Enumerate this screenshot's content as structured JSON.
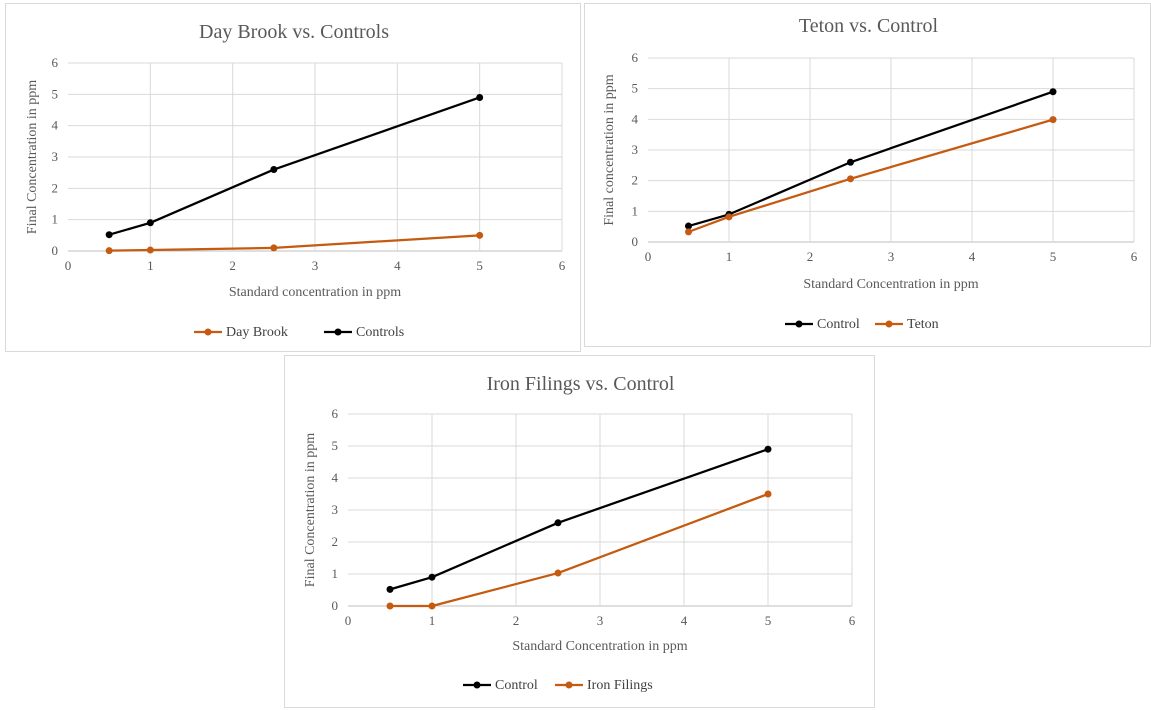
{
  "chart_data": [
    {
      "type": "line",
      "title": "Day Brook vs. Controls",
      "xlabel": "Standard concentration in ppm",
      "ylabel": "Final Concentration in ppm",
      "xlim": [
        0,
        6
      ],
      "ylim": [
        0,
        6
      ],
      "xticks": [
        0,
        1,
        2,
        3,
        4,
        5,
        6
      ],
      "yticks": [
        0,
        1,
        2,
        3,
        4,
        5,
        6
      ],
      "grid": true,
      "legend_position": "bottom",
      "series": [
        {
          "name": "Day Brook",
          "color": "#C55A11",
          "x": [
            0.5,
            1,
            2.5,
            5
          ],
          "y": [
            0.01,
            0.03,
            0.1,
            0.5
          ]
        },
        {
          "name": "Controls",
          "color": "#000000",
          "x": [
            0.5,
            1,
            2.5,
            5
          ],
          "y": [
            0.52,
            0.9,
            2.6,
            4.9
          ]
        }
      ]
    },
    {
      "type": "line",
      "title": "Teton vs. Control",
      "xlabel": "Standard Concentration in ppm",
      "ylabel": "Final concentration in ppm",
      "xlim": [
        0,
        6
      ],
      "ylim": [
        0,
        6
      ],
      "xticks": [
        0,
        1,
        2,
        3,
        4,
        5,
        6
      ],
      "yticks": [
        0,
        1,
        2,
        3,
        4,
        5,
        6
      ],
      "grid": true,
      "legend_position": "bottom",
      "series": [
        {
          "name": "Control",
          "color": "#000000",
          "x": [
            0.5,
            1,
            2.5,
            5
          ],
          "y": [
            0.52,
            0.9,
            2.6,
            4.9
          ]
        },
        {
          "name": "Teton",
          "color": "#C55A11",
          "x": [
            0.5,
            1,
            2.5,
            5
          ],
          "y": [
            0.33,
            0.82,
            2.06,
            3.99
          ]
        }
      ]
    },
    {
      "type": "line",
      "title": "Iron Filings vs. Control",
      "xlabel": "Standard Concentration in ppm",
      "ylabel": "Final Concentration in ppm",
      "xlim": [
        0,
        6
      ],
      "ylim": [
        0,
        6
      ],
      "xticks": [
        0,
        1,
        2,
        3,
        4,
        5,
        6
      ],
      "yticks": [
        0,
        1,
        2,
        3,
        4,
        5,
        6
      ],
      "grid": true,
      "legend_position": "bottom",
      "series": [
        {
          "name": "Control",
          "color": "#000000",
          "x": [
            0.5,
            1,
            2.5,
            5
          ],
          "y": [
            0.52,
            0.9,
            2.6,
            4.9
          ]
        },
        {
          "name": "Iron Filings",
          "color": "#C55A11",
          "x": [
            0.5,
            1,
            2.5,
            5
          ],
          "y": [
            0,
            0,
            1.03,
            3.5
          ]
        }
      ]
    }
  ]
}
